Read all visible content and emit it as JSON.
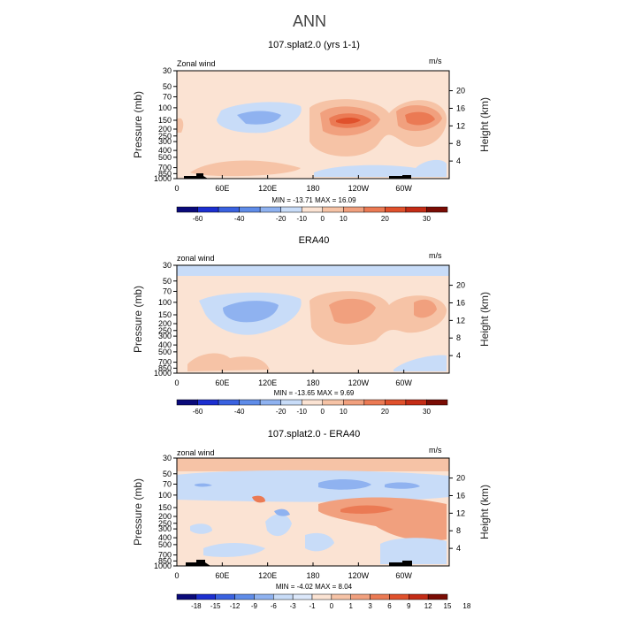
{
  "figure": {
    "title": "ANN"
  },
  "colors": {
    "cb1": [
      "#0a0a7a",
      "#1c2fd0",
      "#3a62e0",
      "#5f8ce8",
      "#8fb2f0",
      "#c8dcf8",
      "#fbe3d3",
      "#f6c3a6",
      "#f1a07e",
      "#eb7a54",
      "#e0512c",
      "#c42c16",
      "#7a0c04"
    ],
    "cb3": [
      "#0a0a7a",
      "#1c2fd0",
      "#3a62e0",
      "#5f8ce8",
      "#8fb2f0",
      "#c8dcf8",
      "#dce8fb",
      "#fbe3d3",
      "#f6c3a6",
      "#f1a07e",
      "#eb7a54",
      "#e0512c",
      "#c42c16",
      "#7a0c04"
    ]
  },
  "chart_data": [
    {
      "type": "heatmap",
      "title": "107.splat2.0 (yrs 1-1)",
      "left_label": "Zonal wind",
      "right_label": "m/s",
      "ylabel": "Pressure (mb)",
      "ylabel_right": "Height (km)",
      "xticks": [
        "0",
        "60E",
        "120E",
        "180",
        "120W",
        "60W"
      ],
      "pressure_ticks": [
        "30",
        "50",
        "70",
        "100",
        "150",
        "200",
        "250",
        "300",
        "400",
        "500",
        "700",
        "850",
        "1000"
      ],
      "height_ticks": [
        "20",
        "16",
        "12",
        "8",
        "4"
      ],
      "min_max": "MIN = -13.71   MAX =  16.09",
      "colorbar_levels": [
        "-60",
        "-40",
        "-20",
        "-10",
        "0",
        "10",
        "20",
        "30"
      ],
      "color_key": "cb1"
    },
    {
      "type": "heatmap",
      "title": "ERA40",
      "left_label": "zonal wind",
      "right_label": "m/s",
      "ylabel": "Pressure (mb)",
      "ylabel_right": "Height (km)",
      "xticks": [
        "0",
        "60E",
        "120E",
        "180",
        "120W",
        "60W"
      ],
      "pressure_ticks": [
        "30",
        "50",
        "70",
        "100",
        "150",
        "200",
        "250",
        "300",
        "400",
        "500",
        "700",
        "850",
        "1000"
      ],
      "height_ticks": [
        "20",
        "16",
        "12",
        "8",
        "4"
      ],
      "min_max": "MIN = -13.65   MAX =   9.69",
      "colorbar_levels": [
        "-60",
        "-40",
        "-20",
        "-10",
        "0",
        "10",
        "20",
        "30"
      ],
      "color_key": "cb1"
    },
    {
      "type": "heatmap",
      "title": "107.splat2.0 - ERA40",
      "left_label": "zonal wind",
      "right_label": "m/s",
      "ylabel": "Pressure (mb)",
      "ylabel_right": "Height (km)",
      "xticks": [
        "0",
        "60E",
        "120E",
        "180",
        "120W",
        "60W"
      ],
      "pressure_ticks": [
        "30",
        "50",
        "70",
        "100",
        "150",
        "200",
        "250",
        "300",
        "400",
        "500",
        "700",
        "850",
        "1000"
      ],
      "height_ticks": [
        "20",
        "16",
        "12",
        "8",
        "4"
      ],
      "min_max": "MIN =  -4.02   MAX =   8.04",
      "colorbar_levels": [
        "-18",
        "-15",
        "-12",
        "-9",
        "-6",
        "-3",
        "-1",
        "0",
        "1",
        "3",
        "6",
        "9",
        "12",
        "15",
        "18"
      ],
      "color_key": "cb3"
    }
  ]
}
